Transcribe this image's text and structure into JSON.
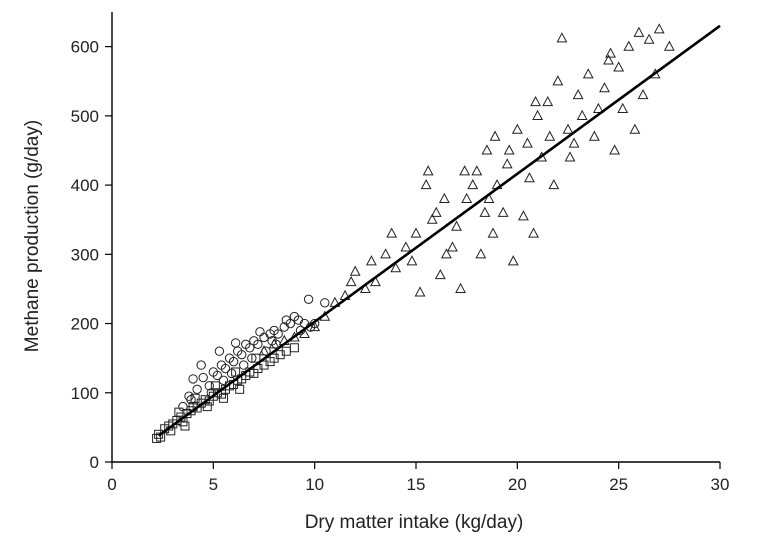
{
  "chart_data": {
    "type": "scatter",
    "title": "",
    "xlabel": "Dry matter intake (kg/day)",
    "ylabel": "Methane production (g/day)",
    "xlim": [
      0,
      30
    ],
    "ylim": [
      0,
      650
    ],
    "x_ticks": [
      0,
      5,
      10,
      15,
      20,
      25,
      30
    ],
    "y_ticks": [
      0,
      100,
      200,
      300,
      400,
      500,
      600
    ],
    "grid": false,
    "legend": "none",
    "regression_line": {
      "x": [
        2.3,
        30
      ],
      "y": [
        38,
        630
      ]
    },
    "series": [
      {
        "marker": "square",
        "points": [
          [
            2.2,
            34
          ],
          [
            2.3,
            40
          ],
          [
            2.4,
            36
          ],
          [
            2.6,
            48
          ],
          [
            2.8,
            52
          ],
          [
            3.0,
            55
          ],
          [
            3.2,
            60
          ],
          [
            3.4,
            65
          ],
          [
            3.5,
            58
          ],
          [
            3.7,
            70
          ],
          [
            3.9,
            74
          ],
          [
            4.0,
            80
          ],
          [
            4.2,
            78
          ],
          [
            4.4,
            85
          ],
          [
            4.6,
            90
          ],
          [
            4.8,
            88
          ],
          [
            5.0,
            95
          ],
          [
            5.2,
            100
          ],
          [
            5.4,
            98
          ],
          [
            5.6,
            105
          ],
          [
            5.8,
            110
          ],
          [
            6.0,
            112
          ],
          [
            6.2,
            118
          ],
          [
            6.4,
            120
          ],
          [
            6.6,
            125
          ],
          [
            6.8,
            130
          ],
          [
            7.0,
            128
          ],
          [
            7.2,
            135
          ],
          [
            7.5,
            140
          ],
          [
            7.8,
            145
          ],
          [
            8.0,
            150
          ],
          [
            8.3,
            155
          ],
          [
            8.6,
            160
          ],
          [
            9.0,
            165
          ],
          [
            3.3,
            72
          ],
          [
            4.1,
            92
          ],
          [
            5.1,
            110
          ],
          [
            6.1,
            130
          ],
          [
            7.1,
            150
          ],
          [
            4.7,
            80
          ],
          [
            5.5,
            92
          ],
          [
            6.3,
            105
          ],
          [
            3.6,
            52
          ],
          [
            2.9,
            45
          ]
        ]
      },
      {
        "marker": "circle",
        "points": [
          [
            3.5,
            80
          ],
          [
            3.8,
            95
          ],
          [
            4.0,
            120
          ],
          [
            4.2,
            105
          ],
          [
            4.5,
            122
          ],
          [
            4.8,
            110
          ],
          [
            5.0,
            130
          ],
          [
            5.2,
            125
          ],
          [
            5.4,
            140
          ],
          [
            5.6,
            135
          ],
          [
            5.8,
            150
          ],
          [
            6.0,
            145
          ],
          [
            6.2,
            160
          ],
          [
            6.4,
            155
          ],
          [
            6.6,
            170
          ],
          [
            6.8,
            165
          ],
          [
            7.0,
            175
          ],
          [
            7.2,
            170
          ],
          [
            7.5,
            180
          ],
          [
            7.8,
            185
          ],
          [
            8.0,
            190
          ],
          [
            8.2,
            185
          ],
          [
            8.5,
            195
          ],
          [
            8.8,
            200
          ],
          [
            9.0,
            210
          ],
          [
            9.2,
            205
          ],
          [
            9.5,
            200
          ],
          [
            9.8,
            195
          ],
          [
            10.0,
            200
          ],
          [
            4.4,
            140
          ],
          [
            5.3,
            160
          ],
          [
            6.1,
            172
          ],
          [
            7.3,
            188
          ],
          [
            8.6,
            205
          ],
          [
            9.7,
            235
          ],
          [
            10.5,
            230
          ],
          [
            5.5,
            118
          ],
          [
            6.5,
            140
          ],
          [
            7.6,
            160
          ],
          [
            4.9,
            100
          ],
          [
            6.9,
            150
          ],
          [
            8.1,
            170
          ],
          [
            3.9,
            90
          ],
          [
            5.9,
            128
          ],
          [
            7.9,
            175
          ],
          [
            9.3,
            190
          ]
        ]
      },
      {
        "marker": "triangle",
        "points": [
          [
            7.5,
            160
          ],
          [
            8.0,
            170
          ],
          [
            8.5,
            175
          ],
          [
            9.0,
            180
          ],
          [
            9.5,
            185
          ],
          [
            10.0,
            195
          ],
          [
            10.5,
            210
          ],
          [
            11.0,
            230
          ],
          [
            11.5,
            240
          ],
          [
            12.0,
            275
          ],
          [
            12.5,
            250
          ],
          [
            13.0,
            260
          ],
          [
            13.5,
            300
          ],
          [
            14.0,
            280
          ],
          [
            14.5,
            310
          ],
          [
            15.0,
            330
          ],
          [
            15.2,
            245
          ],
          [
            15.5,
            400
          ],
          [
            16.0,
            360
          ],
          [
            16.2,
            270
          ],
          [
            16.5,
            300
          ],
          [
            17.0,
            340
          ],
          [
            17.2,
            250
          ],
          [
            17.5,
            380
          ],
          [
            18.0,
            420
          ],
          [
            18.2,
            300
          ],
          [
            18.5,
            450
          ],
          [
            18.8,
            330
          ],
          [
            19.0,
            400
          ],
          [
            19.5,
            430
          ],
          [
            19.8,
            290
          ],
          [
            20.0,
            480
          ],
          [
            20.5,
            460
          ],
          [
            20.8,
            330
          ],
          [
            21.0,
            500
          ],
          [
            21.5,
            520
          ],
          [
            21.8,
            400
          ],
          [
            22.0,
            550
          ],
          [
            22.5,
            480
          ],
          [
            23.0,
            530
          ],
          [
            23.5,
            560
          ],
          [
            24.0,
            510
          ],
          [
            24.5,
            580
          ],
          [
            25.0,
            570
          ],
          [
            25.5,
            600
          ],
          [
            26.0,
            620
          ],
          [
            26.5,
            610
          ],
          [
            27.0,
            625
          ],
          [
            27.5,
            600
          ],
          [
            22.2,
            612
          ],
          [
            23.8,
            470
          ],
          [
            24.8,
            450
          ],
          [
            25.8,
            480
          ],
          [
            26.2,
            530
          ],
          [
            19.3,
            360
          ],
          [
            20.3,
            355
          ],
          [
            18.6,
            380
          ],
          [
            17.8,
            400
          ],
          [
            16.8,
            310
          ],
          [
            14.8,
            290
          ],
          [
            13.8,
            330
          ],
          [
            15.8,
            350
          ],
          [
            21.2,
            440
          ],
          [
            22.8,
            460
          ],
          [
            23.2,
            500
          ],
          [
            24.3,
            540
          ],
          [
            25.2,
            510
          ],
          [
            20.6,
            410
          ],
          [
            21.6,
            470
          ],
          [
            19.6,
            450
          ],
          [
            17.4,
            420
          ],
          [
            18.4,
            360
          ],
          [
            20.9,
            520
          ],
          [
            22.6,
            440
          ],
          [
            24.6,
            590
          ],
          [
            26.8,
            560
          ],
          [
            16.4,
            380
          ],
          [
            15.6,
            420
          ],
          [
            18.9,
            470
          ],
          [
            12.8,
            290
          ],
          [
            11.8,
            260
          ]
        ]
      }
    ]
  }
}
